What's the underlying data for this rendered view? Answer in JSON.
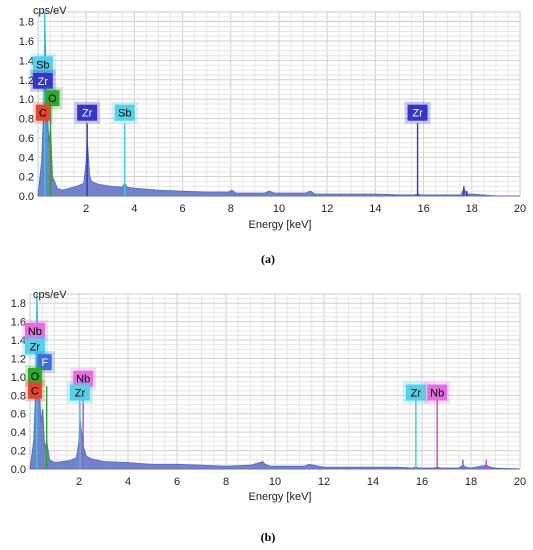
{
  "chart_data": [
    {
      "type": "line",
      "panel_label": "(a)",
      "y_unit": "cps/eV",
      "xlabel": "Energy [keV]",
      "xlim": [
        0,
        20
      ],
      "ylim": [
        0,
        1.9
      ],
      "x_ticks": [
        2,
        4,
        6,
        8,
        10,
        12,
        14,
        16,
        18,
        20
      ],
      "y_ticks": [
        "0.0",
        "0.2",
        "0.4",
        "0.6",
        "0.8",
        "1.0",
        "1.2",
        "1.4",
        "1.6",
        "1.8"
      ],
      "grid": true,
      "series": [
        {
          "color": "#5b6fc0",
          "x": [
            0.0,
            0.15,
            0.25,
            0.28,
            0.35,
            0.45,
            0.52,
            0.6,
            0.8,
            1.0,
            1.3,
            1.6,
            1.9,
            2.0,
            2.04,
            2.08,
            2.14,
            2.2,
            2.3,
            2.5,
            3.0,
            3.5,
            3.6,
            3.7,
            4.0,
            5.0,
            6.0,
            7.0,
            7.9,
            8.05,
            8.2,
            9.0,
            9.4,
            9.6,
            9.8,
            10.5,
            11.1,
            11.3,
            11.5,
            12.0,
            13.0,
            14.0,
            15.0,
            15.6,
            15.75,
            15.9,
            16.5,
            17.0,
            17.55,
            17.67,
            17.8,
            18.0,
            19.0,
            20.0
          ],
          "y": [
            0.0,
            0.35,
            0.95,
            1.9,
            1.1,
            0.55,
            0.7,
            0.2,
            0.08,
            0.06,
            0.08,
            0.1,
            0.13,
            0.35,
            0.58,
            0.45,
            0.22,
            0.16,
            0.14,
            0.12,
            0.1,
            0.09,
            0.13,
            0.09,
            0.08,
            0.06,
            0.05,
            0.04,
            0.04,
            0.06,
            0.03,
            0.03,
            0.03,
            0.05,
            0.03,
            0.03,
            0.03,
            0.05,
            0.02,
            0.02,
            0.02,
            0.02,
            0.01,
            0.01,
            0.02,
            0.01,
            0.01,
            0.01,
            0.01,
            0.08,
            0.02,
            0.02,
            0.0,
            0.0
          ]
        }
      ],
      "markers": [
        {
          "x": 0.28,
          "y": 1.9,
          "color": "#3ec4e0"
        },
        {
          "x": 0.52,
          "y": 0.95,
          "color": "#27a02c"
        },
        {
          "x": 2.04,
          "y": 0.75,
          "color": "#3535c8"
        },
        {
          "x": 3.6,
          "y": 0.75,
          "color": "#3ec4e0"
        },
        {
          "x": 15.75,
          "y": 0.75,
          "color": "#3535c8"
        },
        {
          "x": 17.67,
          "y": 0.1,
          "color": "#3535c8"
        },
        {
          "x": 17.8,
          "y": 0.05,
          "color": "#3535c8"
        }
      ],
      "element_tags": [
        {
          "label": "Sb",
          "x": 0.2,
          "y": 1.36,
          "bg": "#55d0e8",
          "fg": "#000000"
        },
        {
          "label": "Zr",
          "x": 0.2,
          "y": 1.19,
          "bg": "#3535c8",
          "fg": "#ffffff"
        },
        {
          "label": "O",
          "x": 0.6,
          "y": 1.01,
          "bg": "#2ea82e",
          "fg": "#000000"
        },
        {
          "label": "C",
          "x": 0.2,
          "y": 0.86,
          "bg": "#e0472f",
          "fg": "#000000"
        },
        {
          "label": "Zr",
          "x": 2.04,
          "y": 0.86,
          "bg": "#3535c8",
          "fg": "#ffffff"
        },
        {
          "label": "Sb",
          "x": 3.6,
          "y": 0.86,
          "bg": "#55d0e8",
          "fg": "#000000"
        },
        {
          "label": "Zr",
          "x": 15.75,
          "y": 0.86,
          "bg": "#3535c8",
          "fg": "#ffffff"
        }
      ]
    },
    {
      "type": "line",
      "panel_label": "(b)",
      "y_unit": "cps/eV",
      "xlabel": "Energy [keV]",
      "xlim": [
        0,
        20
      ],
      "ylim": [
        0,
        1.9
      ],
      "x_ticks": [
        2,
        4,
        6,
        8,
        10,
        12,
        14,
        16,
        18,
        20
      ],
      "y_ticks": [
        "0.0",
        "0.2",
        "0.4",
        "0.6",
        "0.8",
        "1.0",
        "1.2",
        "1.4",
        "1.6",
        "1.8"
      ],
      "grid": true,
      "series": [
        {
          "color": "#5b6fc0",
          "x": [
            0.0,
            0.15,
            0.25,
            0.28,
            0.35,
            0.45,
            0.52,
            0.6,
            0.68,
            0.8,
            1.0,
            1.3,
            1.6,
            1.9,
            2.0,
            2.04,
            2.1,
            2.17,
            2.3,
            2.5,
            3.0,
            4.0,
            5.0,
            6.0,
            7.0,
            8.0,
            9.0,
            9.5,
            9.6,
            9.8,
            10.5,
            11.2,
            11.4,
            12.0,
            13.0,
            14.0,
            15.0,
            15.6,
            15.75,
            15.9,
            16.5,
            16.62,
            16.8,
            17.5,
            17.67,
            17.8,
            18.0,
            18.62,
            18.8,
            19.0,
            20.0
          ],
          "y": [
            0.0,
            0.3,
            0.95,
            1.9,
            1.05,
            0.5,
            0.65,
            0.22,
            0.3,
            0.1,
            0.07,
            0.08,
            0.09,
            0.12,
            0.3,
            0.55,
            0.4,
            0.25,
            0.14,
            0.11,
            0.08,
            0.07,
            0.05,
            0.05,
            0.04,
            0.03,
            0.04,
            0.08,
            0.05,
            0.03,
            0.03,
            0.03,
            0.05,
            0.02,
            0.02,
            0.02,
            0.02,
            0.01,
            0.02,
            0.01,
            0.01,
            0.02,
            0.01,
            0.01,
            0.04,
            0.02,
            0.01,
            0.04,
            0.02,
            0.01,
            0.0
          ]
        }
      ],
      "markers": [
        {
          "x": 0.28,
          "y": 1.9,
          "color": "#3ec4e0"
        },
        {
          "x": 0.68,
          "y": 0.9,
          "color": "#27a02c"
        },
        {
          "x": 2.04,
          "y": 0.85,
          "color": "#3ec4e0"
        },
        {
          "x": 2.17,
          "y": 0.85,
          "color": "#d040c8"
        },
        {
          "x": 15.75,
          "y": 0.75,
          "color": "#3ec4e0"
        },
        {
          "x": 16.62,
          "y": 0.75,
          "color": "#d040c8"
        },
        {
          "x": 17.67,
          "y": 0.1,
          "color": "#5b6fc0"
        },
        {
          "x": 18.62,
          "y": 0.1,
          "color": "#d040c8"
        }
      ],
      "element_tags": [
        {
          "label": "Nb",
          "x": 0.2,
          "y": 1.5,
          "bg": "#e070e0",
          "fg": "#000000"
        },
        {
          "label": "Zr",
          "x": 0.2,
          "y": 1.33,
          "bg": "#55d0e8",
          "fg": "#000000"
        },
        {
          "label": "F",
          "x": 0.6,
          "y": 1.16,
          "bg": "#3a6ee0",
          "fg": "#ffffff"
        },
        {
          "label": "O",
          "x": 0.2,
          "y": 1.01,
          "bg": "#2ea82e",
          "fg": "#000000"
        },
        {
          "label": "C",
          "x": 0.2,
          "y": 0.85,
          "bg": "#e0472f",
          "fg": "#000000"
        },
        {
          "label": "Nb",
          "x": 2.17,
          "y": 0.98,
          "bg": "#e070e0",
          "fg": "#000000"
        },
        {
          "label": "Zr",
          "x": 2.04,
          "y": 0.83,
          "bg": "#55d0e8",
          "fg": "#000000"
        },
        {
          "label": "Zr",
          "x": 15.75,
          "y": 0.83,
          "bg": "#55d0e8",
          "fg": "#000000"
        },
        {
          "label": "Nb",
          "x": 16.62,
          "y": 0.83,
          "bg": "#e070e0",
          "fg": "#000000"
        }
      ]
    }
  ]
}
